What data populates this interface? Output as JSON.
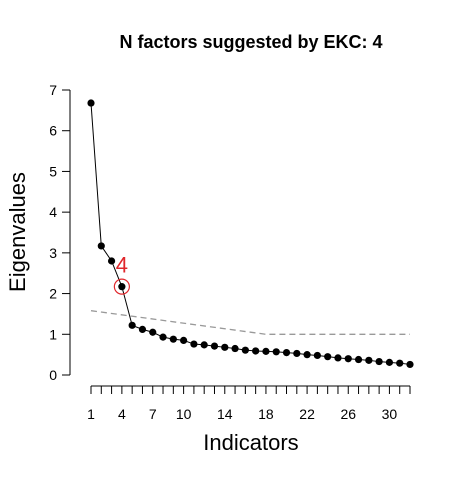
{
  "chart_data": {
    "type": "line",
    "title": "N factors suggested by EKC: 4",
    "xlabel": "Indicators",
    "ylabel": "Eigenvalues",
    "xlim": [
      1,
      32
    ],
    "ylim": [
      0,
      7
    ],
    "x_ticks": [
      1,
      2,
      3,
      4,
      5,
      6,
      7,
      8,
      9,
      10,
      11,
      12,
      13,
      14,
      15,
      16,
      17,
      18,
      19,
      20,
      21,
      22,
      23,
      24,
      25,
      26,
      27,
      28,
      29,
      30,
      31,
      32
    ],
    "x_tick_labels": [
      {
        "x": 1,
        "label": "1"
      },
      {
        "x": 4,
        "label": "4"
      },
      {
        "x": 7,
        "label": "7"
      },
      {
        "x": 10,
        "label": "10"
      },
      {
        "x": 14,
        "label": "14"
      },
      {
        "x": 18,
        "label": "18"
      },
      {
        "x": 22,
        "label": "22"
      },
      {
        "x": 26,
        "label": "26"
      },
      {
        "x": 30,
        "label": "30"
      }
    ],
    "y_ticks": [
      0,
      1,
      2,
      3,
      4,
      5,
      6,
      7
    ],
    "series": [
      {
        "color": "#000000",
        "style": "solid-with-points",
        "x": [
          1,
          2,
          3,
          4,
          5,
          6,
          7,
          8,
          9,
          10,
          11,
          12,
          13,
          14,
          15,
          16,
          17,
          18,
          19,
          20,
          21,
          22,
          23,
          24,
          25,
          26,
          27,
          28,
          29,
          30,
          31,
          32
        ],
        "values": [
          6.68,
          3.17,
          2.8,
          2.17,
          1.22,
          1.12,
          1.05,
          0.93,
          0.88,
          0.85,
          0.76,
          0.74,
          0.71,
          0.68,
          0.65,
          0.61,
          0.59,
          0.58,
          0.57,
          0.55,
          0.53,
          0.5,
          0.48,
          0.45,
          0.42,
          0.4,
          0.38,
          0.36,
          0.33,
          0.31,
          0.29,
          0.26
        ]
      },
      {
        "color": "#999999",
        "style": "dashed",
        "x": [
          1,
          18,
          32
        ],
        "values": [
          1.58,
          1.0,
          1.0
        ]
      }
    ],
    "annotations": [
      {
        "x": 4,
        "y": 2.17,
        "text": "4",
        "color": "#e0262b",
        "marker": "circle"
      }
    ]
  }
}
